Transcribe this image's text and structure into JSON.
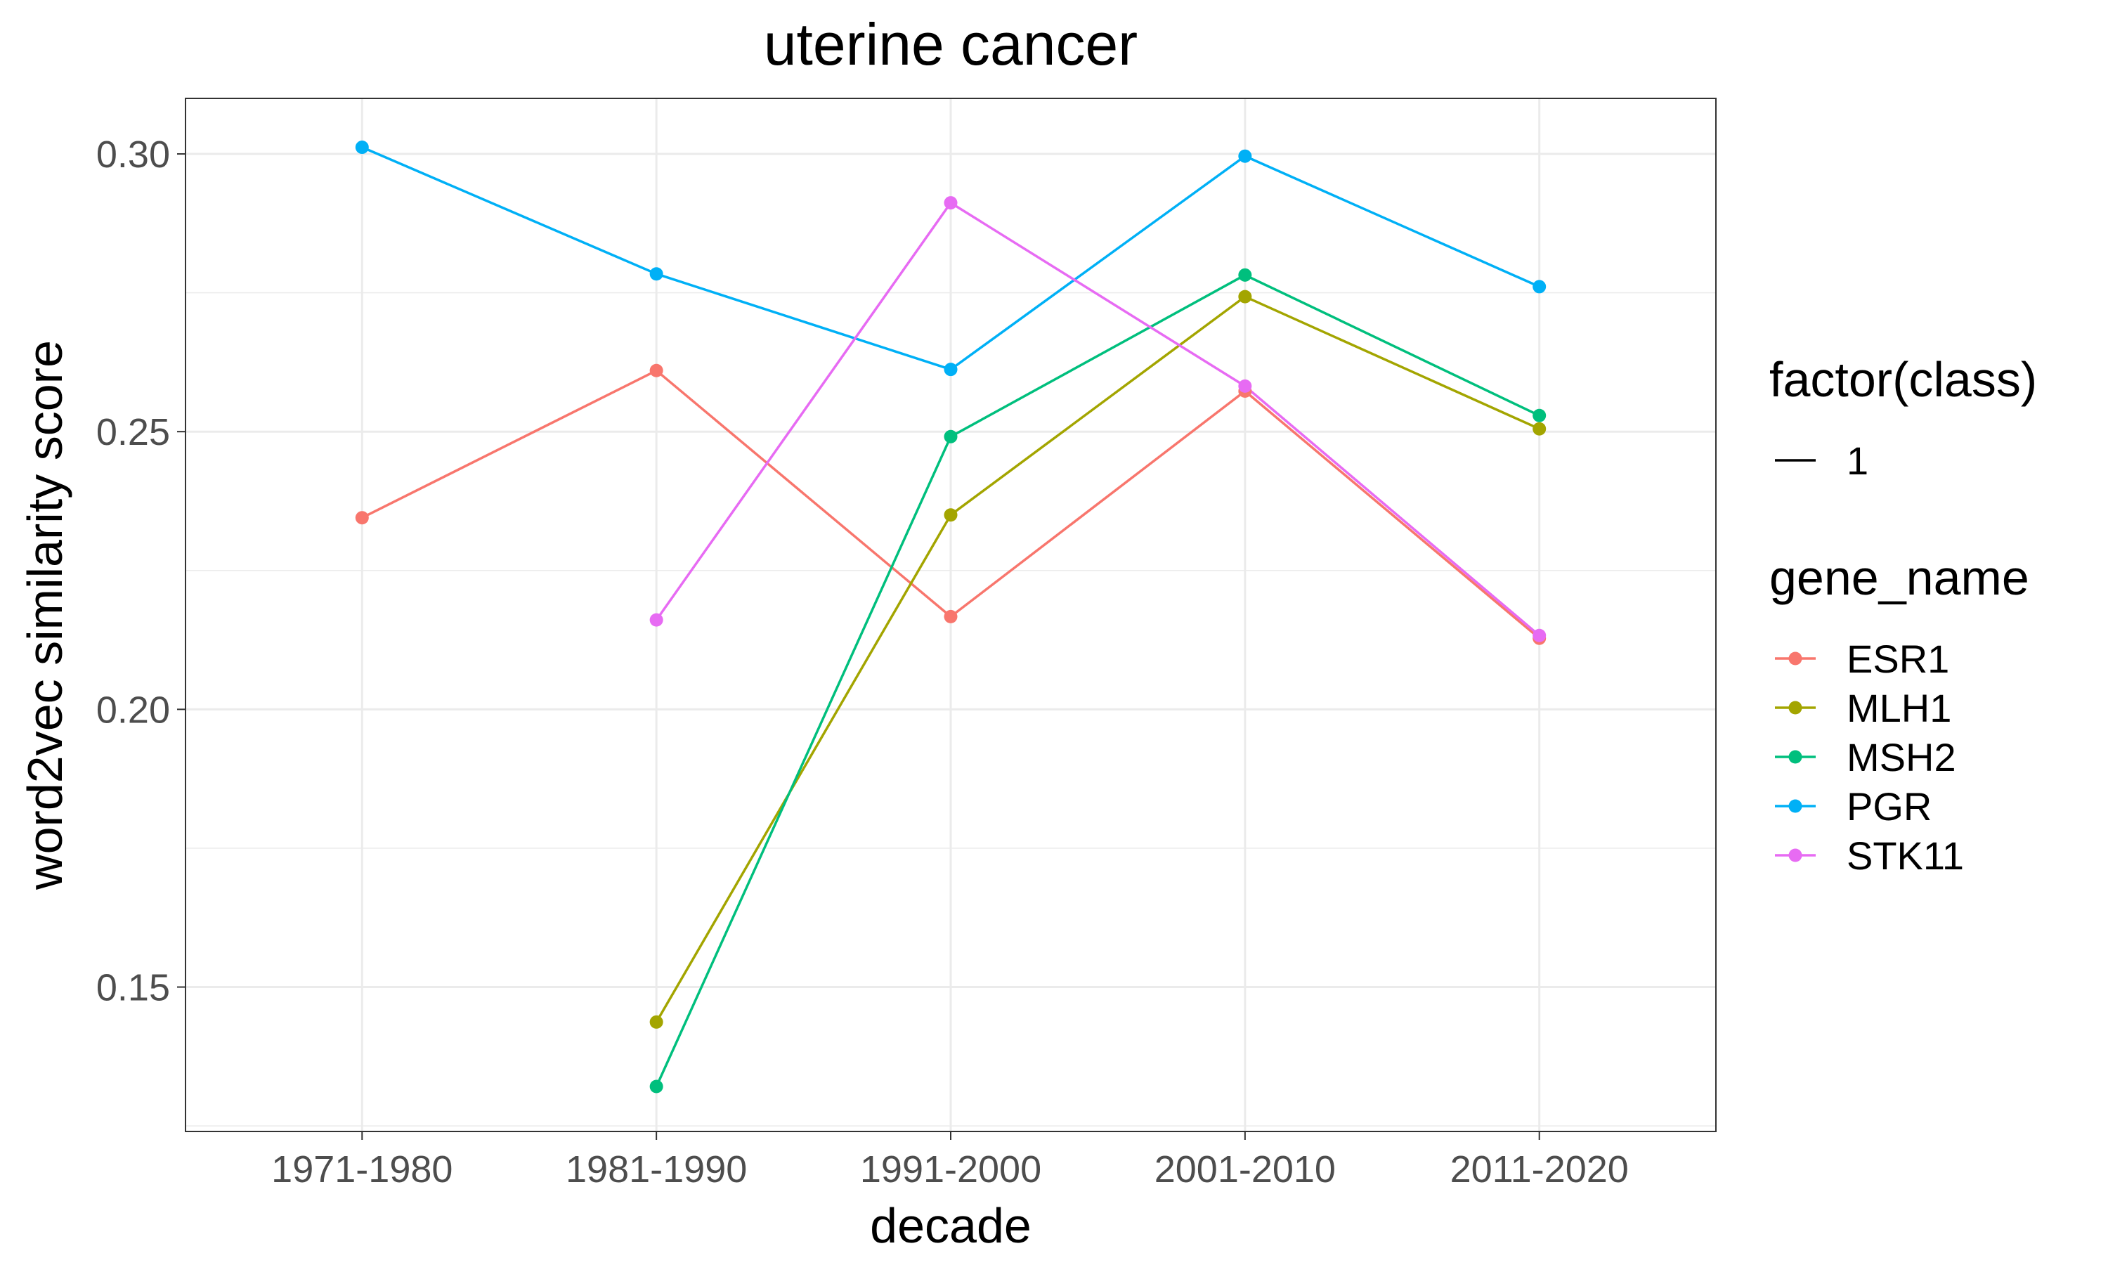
{
  "chart_data": {
    "type": "line",
    "title": "uterine cancer",
    "xlabel": "decade",
    "ylabel": "word2vec similarity score",
    "categories": [
      "1971-1980",
      "1981-1990",
      "1991-2000",
      "2001-2010",
      "2011-2020"
    ],
    "ylim": [
      0.124,
      0.31
    ],
    "yticks": [
      "0.15",
      "0.20",
      "0.25",
      "0.30"
    ],
    "ytick_values": [
      0.15,
      0.2,
      0.25,
      0.3
    ],
    "grid": true,
    "legend_placement": "right",
    "legend_class": {
      "title": "factor(class)",
      "entries": [
        "1"
      ]
    },
    "legend_gene": {
      "title": "gene_name",
      "entries": [
        "ESR1",
        "MLH1",
        "MSH2",
        "PGR",
        "STK11"
      ]
    },
    "series": [
      {
        "name": "ESR1",
        "color": "#F8766D",
        "values": [
          0.2345,
          0.261,
          0.2167,
          0.2573,
          0.2128
        ]
      },
      {
        "name": "MLH1",
        "color": "#A3A500",
        "values": [
          null,
          0.1437,
          0.235,
          0.2743,
          0.2505
        ]
      },
      {
        "name": "MSH2",
        "color": "#00BF7D",
        "values": [
          null,
          0.1321,
          0.2491,
          0.2782,
          0.2529
        ]
      },
      {
        "name": "PGR",
        "color": "#00B0F6",
        "values": [
          0.3012,
          0.2784,
          0.2612,
          0.2996,
          0.2761
        ]
      },
      {
        "name": "STK11",
        "color": "#E76BF3",
        "values": [
          null,
          0.2161,
          0.2912,
          0.2582,
          0.2133
        ]
      }
    ]
  }
}
